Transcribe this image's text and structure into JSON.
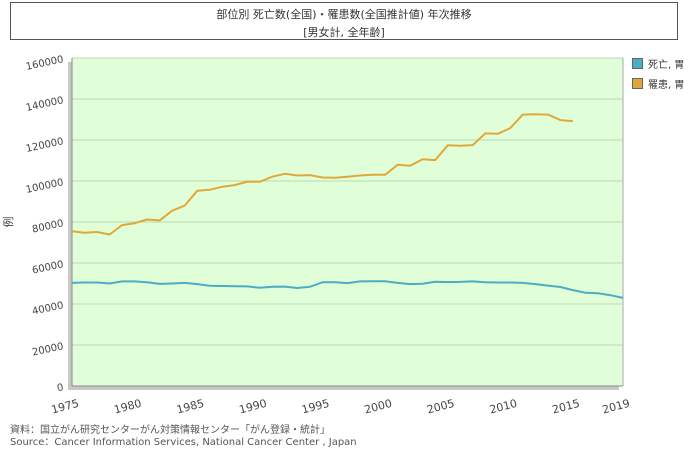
{
  "colors": {
    "plot_bg": "#e0ffd8",
    "death": "#4bacc6",
    "incidence": "#e0a83a",
    "grid": "#b8d8b0",
    "axis": "#888888"
  },
  "source": {
    "line1": "資料：国立がん研究センターがん対策情報センター「がん登録・統計」",
    "line2": "Source：Cancer Information Services, National Cancer Center , Japan"
  },
  "chart_data": {
    "type": "line",
    "title": "部位別 死亡数(全国)・罹患数(全国推計値) 年次推移",
    "subtitle": "[男女計, 全年齢]",
    "xlabel": "",
    "ylabel": "例",
    "xlim": [
      1975,
      2019
    ],
    "ylim": [
      0,
      160000
    ],
    "x_ticks": [
      1975,
      1980,
      1985,
      1990,
      1995,
      2000,
      2005,
      2010,
      2015,
      2019
    ],
    "y_ticks": [
      0,
      20000,
      40000,
      60000,
      80000,
      100000,
      120000,
      140000,
      160000
    ],
    "grid": true,
    "legend": "right",
    "series": [
      {
        "name": "死亡, 胃",
        "color": "#4bacc6",
        "points": [
          [
            1975,
            50300
          ],
          [
            1976,
            50500
          ],
          [
            1977,
            50500
          ],
          [
            1978,
            50000
          ],
          [
            1979,
            51000
          ],
          [
            1980,
            51000
          ],
          [
            1981,
            50600
          ],
          [
            1982,
            49800
          ],
          [
            1983,
            50000
          ],
          [
            1984,
            50300
          ],
          [
            1985,
            49700
          ],
          [
            1986,
            48900
          ],
          [
            1987,
            48800
          ],
          [
            1988,
            48700
          ],
          [
            1989,
            48600
          ],
          [
            1990,
            47900
          ],
          [
            1991,
            48400
          ],
          [
            1992,
            48500
          ],
          [
            1993,
            47800
          ],
          [
            1994,
            48400
          ],
          [
            1995,
            50600
          ],
          [
            1996,
            50600
          ],
          [
            1997,
            50200
          ],
          [
            1998,
            51000
          ],
          [
            1999,
            51100
          ],
          [
            2000,
            51100
          ],
          [
            2001,
            50300
          ],
          [
            2002,
            49700
          ],
          [
            2003,
            49900
          ],
          [
            2004,
            50900
          ],
          [
            2005,
            50700
          ],
          [
            2006,
            50800
          ],
          [
            2007,
            51000
          ],
          [
            2008,
            50600
          ],
          [
            2009,
            50500
          ],
          [
            2010,
            50500
          ],
          [
            2011,
            50300
          ],
          [
            2012,
            49700
          ],
          [
            2013,
            49000
          ],
          [
            2014,
            48300
          ],
          [
            2015,
            46800
          ],
          [
            2016,
            45500
          ],
          [
            2017,
            45200
          ],
          [
            2018,
            44300
          ],
          [
            2019,
            43000
          ]
        ]
      },
      {
        "name": "罹患, 胃",
        "color": "#e0a83a",
        "points": [
          [
            1975,
            75500
          ],
          [
            1976,
            74800
          ],
          [
            1977,
            75100
          ],
          [
            1978,
            73900
          ],
          [
            1979,
            78500
          ],
          [
            1980,
            79400
          ],
          [
            1981,
            81200
          ],
          [
            1982,
            80800
          ],
          [
            1983,
            85500
          ],
          [
            1984,
            88000
          ],
          [
            1985,
            95200
          ],
          [
            1986,
            95700
          ],
          [
            1987,
            97200
          ],
          [
            1988,
            98000
          ],
          [
            1989,
            99700
          ],
          [
            1990,
            99600
          ],
          [
            1991,
            102100
          ],
          [
            1992,
            103500
          ],
          [
            1993,
            102700
          ],
          [
            1994,
            102900
          ],
          [
            1995,
            101700
          ],
          [
            1996,
            101600
          ],
          [
            1997,
            102100
          ],
          [
            1998,
            102700
          ],
          [
            1999,
            103000
          ],
          [
            2000,
            103000
          ],
          [
            2001,
            107900
          ],
          [
            2002,
            107400
          ],
          [
            2003,
            110600
          ],
          [
            2004,
            110200
          ],
          [
            2005,
            117400
          ],
          [
            2006,
            117200
          ],
          [
            2007,
            117500
          ],
          [
            2008,
            123200
          ],
          [
            2009,
            123000
          ],
          [
            2010,
            125800
          ],
          [
            2011,
            132400
          ],
          [
            2012,
            132600
          ],
          [
            2013,
            132400
          ],
          [
            2014,
            129700
          ],
          [
            2015,
            129200
          ]
        ]
      }
    ]
  }
}
